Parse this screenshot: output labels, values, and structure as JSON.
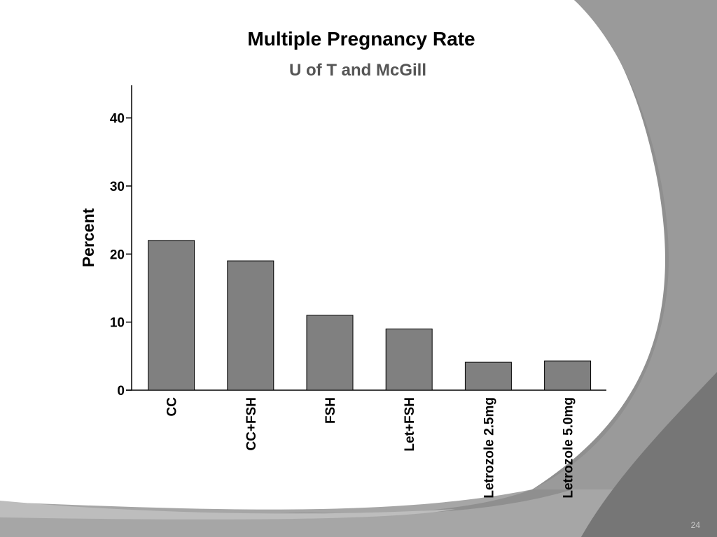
{
  "slide": {
    "number": "24",
    "colors": {
      "background": "#ffffff",
      "swoosh_dark": "#8a8a8a",
      "swoosh_light": "#a6a6a6",
      "swoosh_darkest": "#707070"
    }
  },
  "chart_data": {
    "type": "bar",
    "title": "Multiple Pregnancy Rate",
    "subtitle": "U of T and McGill",
    "xlabel": "",
    "ylabel": "Percent",
    "categories": [
      "CC",
      "CC+FSH",
      "FSH",
      "Let+FSH",
      "Letrozole 2.5mg",
      "Letrozole 5.0mg"
    ],
    "values": [
      22,
      19,
      11,
      9,
      4.1,
      4.3
    ],
    "ylim": [
      0,
      45
    ],
    "yticks": [
      0,
      10,
      20,
      30,
      40
    ],
    "bar_color": "#808080",
    "grid": false,
    "legend": "none"
  }
}
